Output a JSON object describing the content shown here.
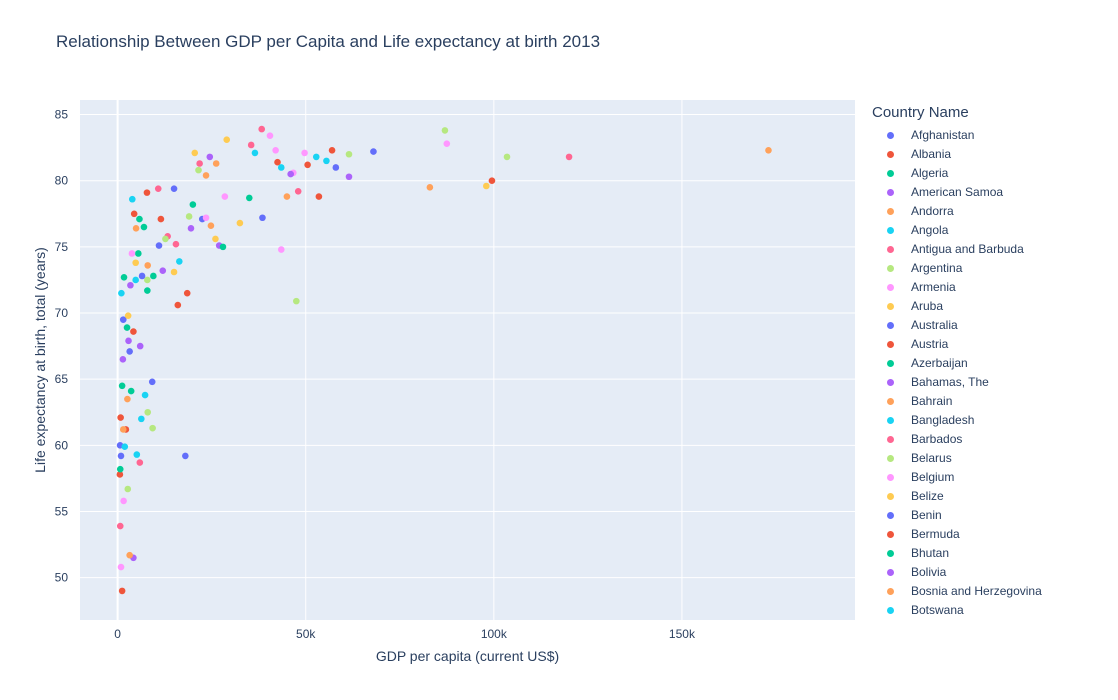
{
  "chart_data": {
    "type": "scatter",
    "title": "Relationship Between GDP per Capita and Life expectancy at birth 2013",
    "xlabel": "GDP per capita (current US$)",
    "ylabel": "Life expectancy at birth, total (years)",
    "xlim": [
      -10000,
      196000
    ],
    "ylim": [
      46.8,
      86.1
    ],
    "xticks": [
      0,
      50000,
      100000,
      150000
    ],
    "xtick_labels": [
      "0",
      "50k",
      "100k",
      "150k"
    ],
    "yticks": [
      50,
      55,
      60,
      65,
      70,
      75,
      80,
      85
    ],
    "ytick_labels": [
      "50",
      "55",
      "60",
      "65",
      "70",
      "75",
      "80",
      "85"
    ],
    "grid": true,
    "legend_title": "Country Name",
    "legend_position": "right",
    "series": [
      {
        "name": "Afghanistan",
        "color": "#636efa",
        "x": [
          650
        ],
        "y": [
          60.0
        ]
      },
      {
        "name": "Albania",
        "color": "#EF553B",
        "x": [
          4400
        ],
        "y": [
          77.5
        ]
      },
      {
        "name": "Algeria",
        "color": "#00cc96",
        "x": [
          5500
        ],
        "y": [
          74.5
        ]
      },
      {
        "name": "American Samoa",
        "color": "#ab63fa",
        "x": [
          12000
        ],
        "y": [
          73.2
        ]
      },
      {
        "name": "Andorra",
        "color": "#FFA15A",
        "x": [
          45000
        ],
        "y": [
          78.8
        ]
      },
      {
        "name": "Angola",
        "color": "#19d3f3",
        "x": [
          5100
        ],
        "y": [
          59.3
        ]
      },
      {
        "name": "Antigua and Barbuda",
        "color": "#FF6692",
        "x": [
          13300
        ],
        "y": [
          75.8
        ]
      },
      {
        "name": "Argentina",
        "color": "#B6E880",
        "x": [
          12700
        ],
        "y": [
          75.6
        ]
      },
      {
        "name": "Armenia",
        "color": "#FF97FF",
        "x": [
          3800
        ],
        "y": [
          74.5
        ]
      },
      {
        "name": "Aruba",
        "color": "#FECB52",
        "x": [
          26000
        ],
        "y": [
          75.6
        ]
      },
      {
        "name": "Australia",
        "color": "#636efa",
        "x": [
          68000
        ],
        "y": [
          82.2
        ]
      },
      {
        "name": "Austria",
        "color": "#EF553B",
        "x": [
          50500
        ],
        "y": [
          81.2
        ]
      },
      {
        "name": "Azerbaijan",
        "color": "#00cc96",
        "x": [
          7900
        ],
        "y": [
          71.7
        ]
      },
      {
        "name": "Bahamas, The",
        "color": "#ab63fa",
        "x": [
          27000
        ],
        "y": [
          75.1
        ]
      },
      {
        "name": "Bahrain",
        "color": "#FFA15A",
        "x": [
          24800
        ],
        "y": [
          76.6
        ]
      },
      {
        "name": "Bangladesh",
        "color": "#19d3f3",
        "x": [
          1000
        ],
        "y": [
          71.5
        ]
      },
      {
        "name": "Barbados",
        "color": "#FF6692",
        "x": [
          15500
        ],
        "y": [
          75.2
        ]
      },
      {
        "name": "Belarus",
        "color": "#B6E880",
        "x": [
          7900
        ],
        "y": [
          72.5
        ]
      },
      {
        "name": "Belgium",
        "color": "#FF97FF",
        "x": [
          46700
        ],
        "y": [
          80.6
        ]
      },
      {
        "name": "Belize",
        "color": "#FECB52",
        "x": [
          4800
        ],
        "y": [
          73.8
        ]
      },
      {
        "name": "Benin",
        "color": "#636efa",
        "x": [
          900
        ],
        "y": [
          59.2
        ]
      },
      {
        "name": "Bermuda",
        "color": "#EF553B",
        "x": [
          99500
        ],
        "y": [
          80.0
        ]
      },
      {
        "name": "Bhutan",
        "color": "#00cc96",
        "x": [
          2500
        ],
        "y": [
          68.9
        ]
      },
      {
        "name": "Bolivia",
        "color": "#ab63fa",
        "x": [
          2900
        ],
        "y": [
          67.9
        ]
      },
      {
        "name": "Bosnia and Herzegovina",
        "color": "#FFA15A",
        "x": [
          4900
        ],
        "y": [
          76.4
        ]
      },
      {
        "name": "Botswana",
        "color": "#19d3f3",
        "x": [
          7300
        ],
        "y": [
          63.8
        ]
      },
      {
        "name": "",
        "color": "#636efa",
        "x": [
          18000,
          15000,
          9200,
          38500,
          11000,
          22500,
          6500,
          1500,
          3200,
          58000
        ],
        "y": [
          59.2,
          79.4,
          64.8,
          77.2,
          75.1,
          77.1,
          72.8,
          69.5,
          67.1,
          81.0
        ]
      },
      {
        "name": "",
        "color": "#EF553B",
        "x": [
          1200,
          600,
          11500,
          18500,
          42500,
          53500,
          2200,
          16000,
          57000,
          800,
          4200,
          7800
        ],
        "y": [
          49.0,
          57.8,
          77.1,
          71.5,
          81.4,
          78.8,
          61.2,
          70.6,
          82.3,
          62.1,
          68.6,
          79.1
        ]
      },
      {
        "name": "",
        "color": "#00cc96",
        "x": [
          700,
          5800,
          20000,
          9500,
          35000,
          1200,
          28000,
          7000,
          3600,
          1700
        ],
        "y": [
          58.2,
          77.1,
          78.2,
          72.8,
          78.7,
          64.5,
          75.0,
          76.5,
          64.1,
          72.7
        ]
      },
      {
        "name": "",
        "color": "#ab63fa",
        "x": [
          4200,
          24500,
          61500,
          3400,
          46000,
          19500,
          6000,
          1400
        ],
        "y": [
          51.5,
          81.8,
          80.3,
          72.1,
          80.5,
          76.4,
          67.5,
          66.5
        ]
      },
      {
        "name": "",
        "color": "#FFA15A",
        "x": [
          3200,
          83000,
          173000,
          2600,
          1500,
          26200,
          23500,
          8000
        ],
        "y": [
          51.7,
          79.5,
          82.3,
          63.5,
          61.2,
          81.3,
          80.4,
          73.6
        ]
      },
      {
        "name": "",
        "color": "#19d3f3",
        "x": [
          52800,
          36500,
          55500,
          1900,
          6300,
          16400,
          43500,
          3900,
          4800
        ],
        "y": [
          81.8,
          82.1,
          81.5,
          59.9,
          62.0,
          73.9,
          81.0,
          78.6,
          72.5
        ]
      },
      {
        "name": "",
        "color": "#FF6692",
        "x": [
          120000,
          38300,
          35500,
          48000,
          700,
          5900,
          21800,
          10800
        ],
        "y": [
          81.8,
          83.9,
          82.7,
          79.2,
          53.9,
          58.7,
          81.3,
          79.4
        ]
      },
      {
        "name": "",
        "color": "#B6E880",
        "x": [
          87000,
          103500,
          61500,
          47500,
          21500,
          8000,
          9300,
          2700,
          19000
        ],
        "y": [
          83.8,
          81.8,
          82.0,
          70.9,
          80.8,
          62.5,
          61.3,
          56.7,
          77.3
        ]
      },
      {
        "name": "",
        "color": "#FF97FF",
        "x": [
          87500,
          40500,
          42000,
          49700,
          43500,
          1600,
          900,
          28500,
          23500
        ],
        "y": [
          82.8,
          83.4,
          82.3,
          82.1,
          74.8,
          55.8,
          50.8,
          78.8,
          77.2
        ]
      },
      {
        "name": "",
        "color": "#FECB52",
        "x": [
          98000,
          29000,
          20500,
          32500,
          15000,
          2800
        ],
        "y": [
          79.6,
          83.1,
          82.1,
          76.8,
          73.1,
          69.8
        ]
      }
    ]
  }
}
